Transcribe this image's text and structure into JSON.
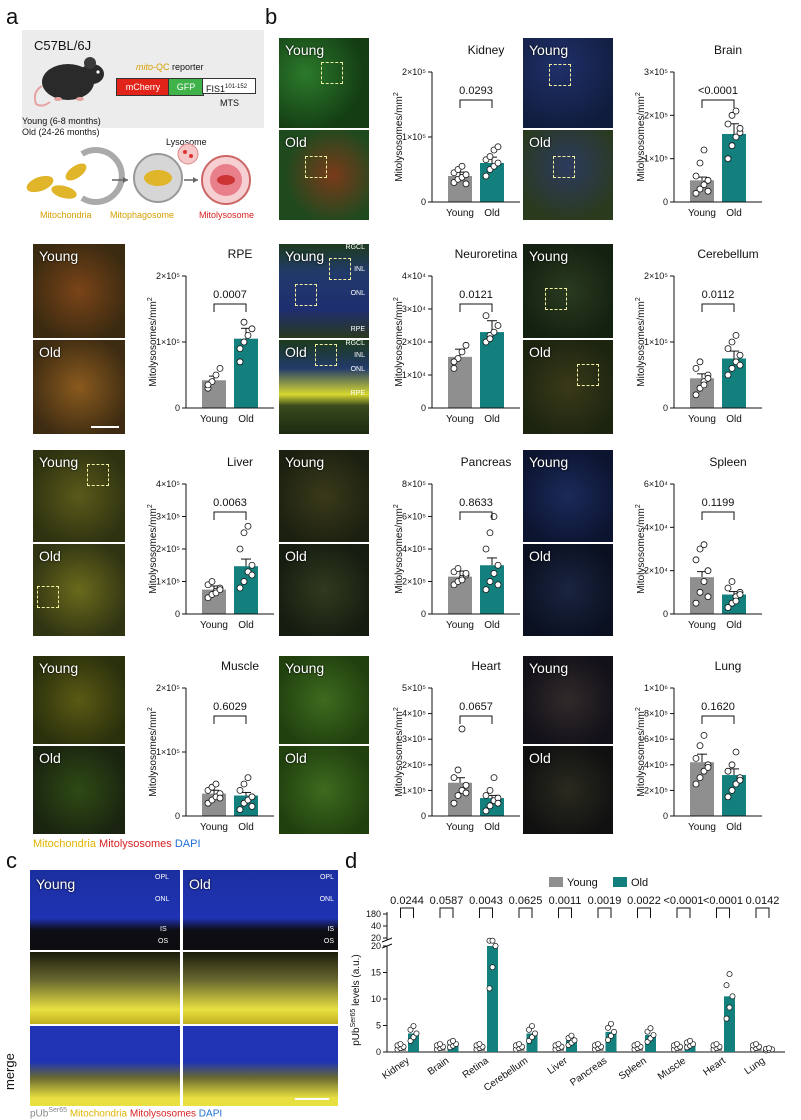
{
  "panel_labels": {
    "a": "a",
    "b": "b",
    "c": "c",
    "d": "d"
  },
  "schematic": {
    "strain": "C57BL/6J",
    "reporter_prefix": "mito",
    "reporter_suffix": "-QC reporter",
    "reporter_parts": [
      "mCherry",
      "GFP",
      "FIS1"
    ],
    "fis_superscript": "101-152",
    "mts": "MTS",
    "ages": [
      "Young (6-8 months)",
      "Old (24-26 months)"
    ],
    "lysosome": "Lysosome",
    "stages": [
      "Mitochondria",
      "Mitophagosome",
      "Mitolysosome"
    ]
  },
  "colors": {
    "young": "#8f8f8f",
    "old": "#13807e",
    "mitochondria": "#e8b800",
    "mitolysosome": "#d62020",
    "dapi": "#1f6fd6"
  },
  "micrograph_labels": {
    "young": "Young",
    "old": "Old"
  },
  "retina_layers": {
    "rgcl": "RGCL",
    "inl": "INL",
    "onl": "ONL",
    "rpe": "RPE",
    "opl": "OPL",
    "is": "IS",
    "os": "OS"
  },
  "legend_b": {
    "mito": "Mitochondria",
    "mitolys": "Mitolysosomes",
    "dapi": "DAPI"
  },
  "legend_c": {
    "pub": "pUb",
    "pub_sup": "Ser65",
    "mito": "Mitochondria",
    "mitolys": "Mitolysosomes",
    "dapi": "DAPI"
  },
  "merge_label": "merge",
  "chart_data": [
    {
      "type": "bar",
      "title": "Kidney",
      "ylabel": "Mitolysosomes/mm2",
      "ylim": [
        0,
        200000
      ],
      "ticks": [
        "0",
        "1×10⁵",
        "2×10⁵"
      ],
      "categories": [
        "Young",
        "Old"
      ],
      "values": [
        40000,
        60000
      ],
      "p": "0.0293",
      "young_points": [
        30000,
        35000,
        38000,
        42000,
        45000,
        50000,
        55000,
        28000
      ],
      "old_points": [
        40000,
        50000,
        55000,
        60000,
        65000,
        70000,
        80000,
        85000
      ]
    },
    {
      "type": "bar",
      "title": "Brain",
      "ylabel": "Mitolysosomes/mm2",
      "ylim": [
        0,
        300000
      ],
      "ticks": [
        "0",
        "1×10⁵",
        "2×10⁵",
        "3×10⁵"
      ],
      "categories": [
        "Young",
        "Old"
      ],
      "values": [
        50000,
        157000
      ],
      "p": "<0.0001",
      "young_points": [
        20000,
        30000,
        40000,
        50000,
        60000,
        90000,
        120000,
        25000
      ],
      "old_points": [
        100000,
        130000,
        150000,
        160000,
        180000,
        200000,
        210000,
        170000
      ]
    },
    {
      "type": "bar",
      "title": "RPE",
      "ylabel": "Mitolysosomes/mm2",
      "ylim": [
        0,
        200000
      ],
      "ticks": [
        "0",
        "1×10⁵",
        "2×10⁵"
      ],
      "categories": [
        "Young",
        "Old"
      ],
      "values": [
        42000,
        105000
      ],
      "p": "0.0007",
      "young_points": [
        30000,
        40000,
        50000,
        60000,
        35000
      ],
      "old_points": [
        70000,
        100000,
        110000,
        120000,
        90000,
        130000
      ]
    },
    {
      "type": "bar",
      "title": "Neuroretina",
      "ylabel": "Mitolysosomes/mm2",
      "ylim": [
        0,
        40000
      ],
      "ticks": [
        "0",
        "1×10⁴",
        "2×10⁴",
        "3×10⁴",
        "4×10⁴"
      ],
      "categories": [
        "Young",
        "Old"
      ],
      "values": [
        15500,
        23000
      ],
      "p": "0.0121",
      "young_points": [
        12000,
        15000,
        17000,
        19000,
        14000
      ],
      "old_points": [
        20000,
        22000,
        23000,
        25000,
        28000,
        21000
      ]
    },
    {
      "type": "bar",
      "title": "Cerebellum",
      "ylabel": "Mitolysosomes/mm2",
      "ylim": [
        0,
        200000
      ],
      "ticks": [
        "0",
        "1×10⁵",
        "2×10⁵"
      ],
      "categories": [
        "Young",
        "Old"
      ],
      "values": [
        45000,
        75000
      ],
      "p": "0.0112",
      "young_points": [
        20000,
        30000,
        40000,
        50000,
        60000,
        70000,
        35000,
        45000
      ],
      "old_points": [
        50000,
        60000,
        70000,
        80000,
        90000,
        100000,
        110000,
        65000
      ]
    },
    {
      "type": "bar",
      "title": "Liver",
      "ylabel": "Mitolysosomes/mm2",
      "ylim": [
        0,
        400000
      ],
      "ticks": [
        "0",
        "1×10⁵",
        "2×10⁵",
        "3×10⁵",
        "4×10⁵"
      ],
      "categories": [
        "Young",
        "Old"
      ],
      "values": [
        75000,
        147000
      ],
      "p": "0.0063",
      "young_points": [
        50000,
        60000,
        70000,
        80000,
        90000,
        100000,
        65000,
        75000
      ],
      "old_points": [
        80000,
        100000,
        130000,
        150000,
        200000,
        250000,
        270000,
        120000
      ]
    },
    {
      "type": "bar",
      "title": "Pancreas",
      "ylabel": "Mitolysosomes/mm2",
      "ylim": [
        0,
        800000
      ],
      "ticks": [
        "0",
        "2×10⁵",
        "4×10⁵",
        "6×10⁵",
        "8×10⁵"
      ],
      "categories": [
        "Young",
        "Old"
      ],
      "values": [
        230000,
        300000
      ],
      "p": "0.8633",
      "young_points": [
        180000,
        200000,
        220000,
        240000,
        260000,
        280000,
        210000,
        250000
      ],
      "old_points": [
        150000,
        200000,
        250000,
        300000,
        400000,
        500000,
        600000,
        180000
      ]
    },
    {
      "type": "bar",
      "title": "Spleen",
      "ylabel": "Mitolysosomes/mm2",
      "ylim": [
        0,
        60000
      ],
      "ticks": [
        "0",
        "2×10⁴",
        "4×10⁴",
        "6×10⁴"
      ],
      "categories": [
        "Young",
        "Old"
      ],
      "values": [
        17000,
        9000
      ],
      "p": "0.1199",
      "young_points": [
        5000,
        10000,
        15000,
        20000,
        25000,
        30000,
        32000,
        8000
      ],
      "old_points": [
        3000,
        5000,
        8000,
        10000,
        12000,
        15000,
        6000,
        9000
      ]
    },
    {
      "type": "bar",
      "title": "Muscle",
      "ylabel": "Mitolysosomes/mm2",
      "ylim": [
        0,
        200000
      ],
      "ticks": [
        "0",
        "1×10⁵",
        "2×10⁵"
      ],
      "categories": [
        "Young",
        "Old"
      ],
      "values": [
        35000,
        32000
      ],
      "p": "0.6029",
      "young_points": [
        20000,
        25000,
        30000,
        35000,
        40000,
        45000,
        50000,
        28000
      ],
      "old_points": [
        10000,
        20000,
        25000,
        30000,
        40000,
        50000,
        60000,
        15000
      ]
    },
    {
      "type": "bar",
      "title": "Heart",
      "ylabel": "Mitolysosomes/mm2",
      "ylim": [
        0,
        500000
      ],
      "ticks": [
        "0",
        "1×10⁵",
        "2×10⁵",
        "3×10⁵",
        "4×10⁵",
        "5×10⁵"
      ],
      "categories": [
        "Young",
        "Old"
      ],
      "values": [
        130000,
        70000
      ],
      "p": "0.0657",
      "young_points": [
        50000,
        80000,
        100000,
        120000,
        150000,
        180000,
        340000,
        90000
      ],
      "old_points": [
        20000,
        40000,
        60000,
        70000,
        80000,
        100000,
        150000,
        50000
      ]
    },
    {
      "type": "bar",
      "title": "Lung",
      "ylabel": "Mitolysosomes/mm2",
      "ylim": [
        0,
        1000000
      ],
      "ticks": [
        "0",
        "2×10⁵",
        "4×10⁵",
        "6×10⁵",
        "8×10⁵",
        "1×10⁶"
      ],
      "categories": [
        "Young",
        "Old"
      ],
      "values": [
        420000,
        320000
      ],
      "p": "0.1620",
      "young_points": [
        250000,
        300000,
        350000,
        400000,
        450000,
        550000,
        630000,
        380000
      ],
      "old_points": [
        150000,
        200000,
        250000,
        300000,
        350000,
        400000,
        500000,
        280000
      ]
    },
    {
      "type": "bar",
      "title": "",
      "ylabel": "pUb levels (a.u.)",
      "ylabel_sup": "Ser65",
      "legend": [
        "Young",
        "Old"
      ],
      "categories": [
        "Kidney",
        "Brain",
        "Retina",
        "Cerebellum",
        "Liver",
        "Pancreas",
        "Spleen",
        "Muscle",
        "Heart",
        "Lung"
      ],
      "series": [
        {
          "name": "Young",
          "values": [
            1,
            1,
            1,
            1,
            1,
            1,
            1,
            1,
            1,
            1
          ]
        },
        {
          "name": "Old",
          "values": [
            3.5,
            1.5,
            20,
            3.5,
            2.2,
            3.8,
            3.2,
            1.5,
            10.5,
            0.5
          ]
        }
      ],
      "p_values": [
        "0.0244",
        "0.0587",
        "0.0043",
        "0.0625",
        "0.0011",
        "0.0019",
        "0.0022",
        "<0.0001",
        "<0.0001",
        "0.0142"
      ],
      "yticks_lower": [
        "0",
        "5",
        "10",
        "15",
        "20"
      ],
      "yticks_upper": [
        "20",
        "40",
        "180"
      ]
    }
  ]
}
